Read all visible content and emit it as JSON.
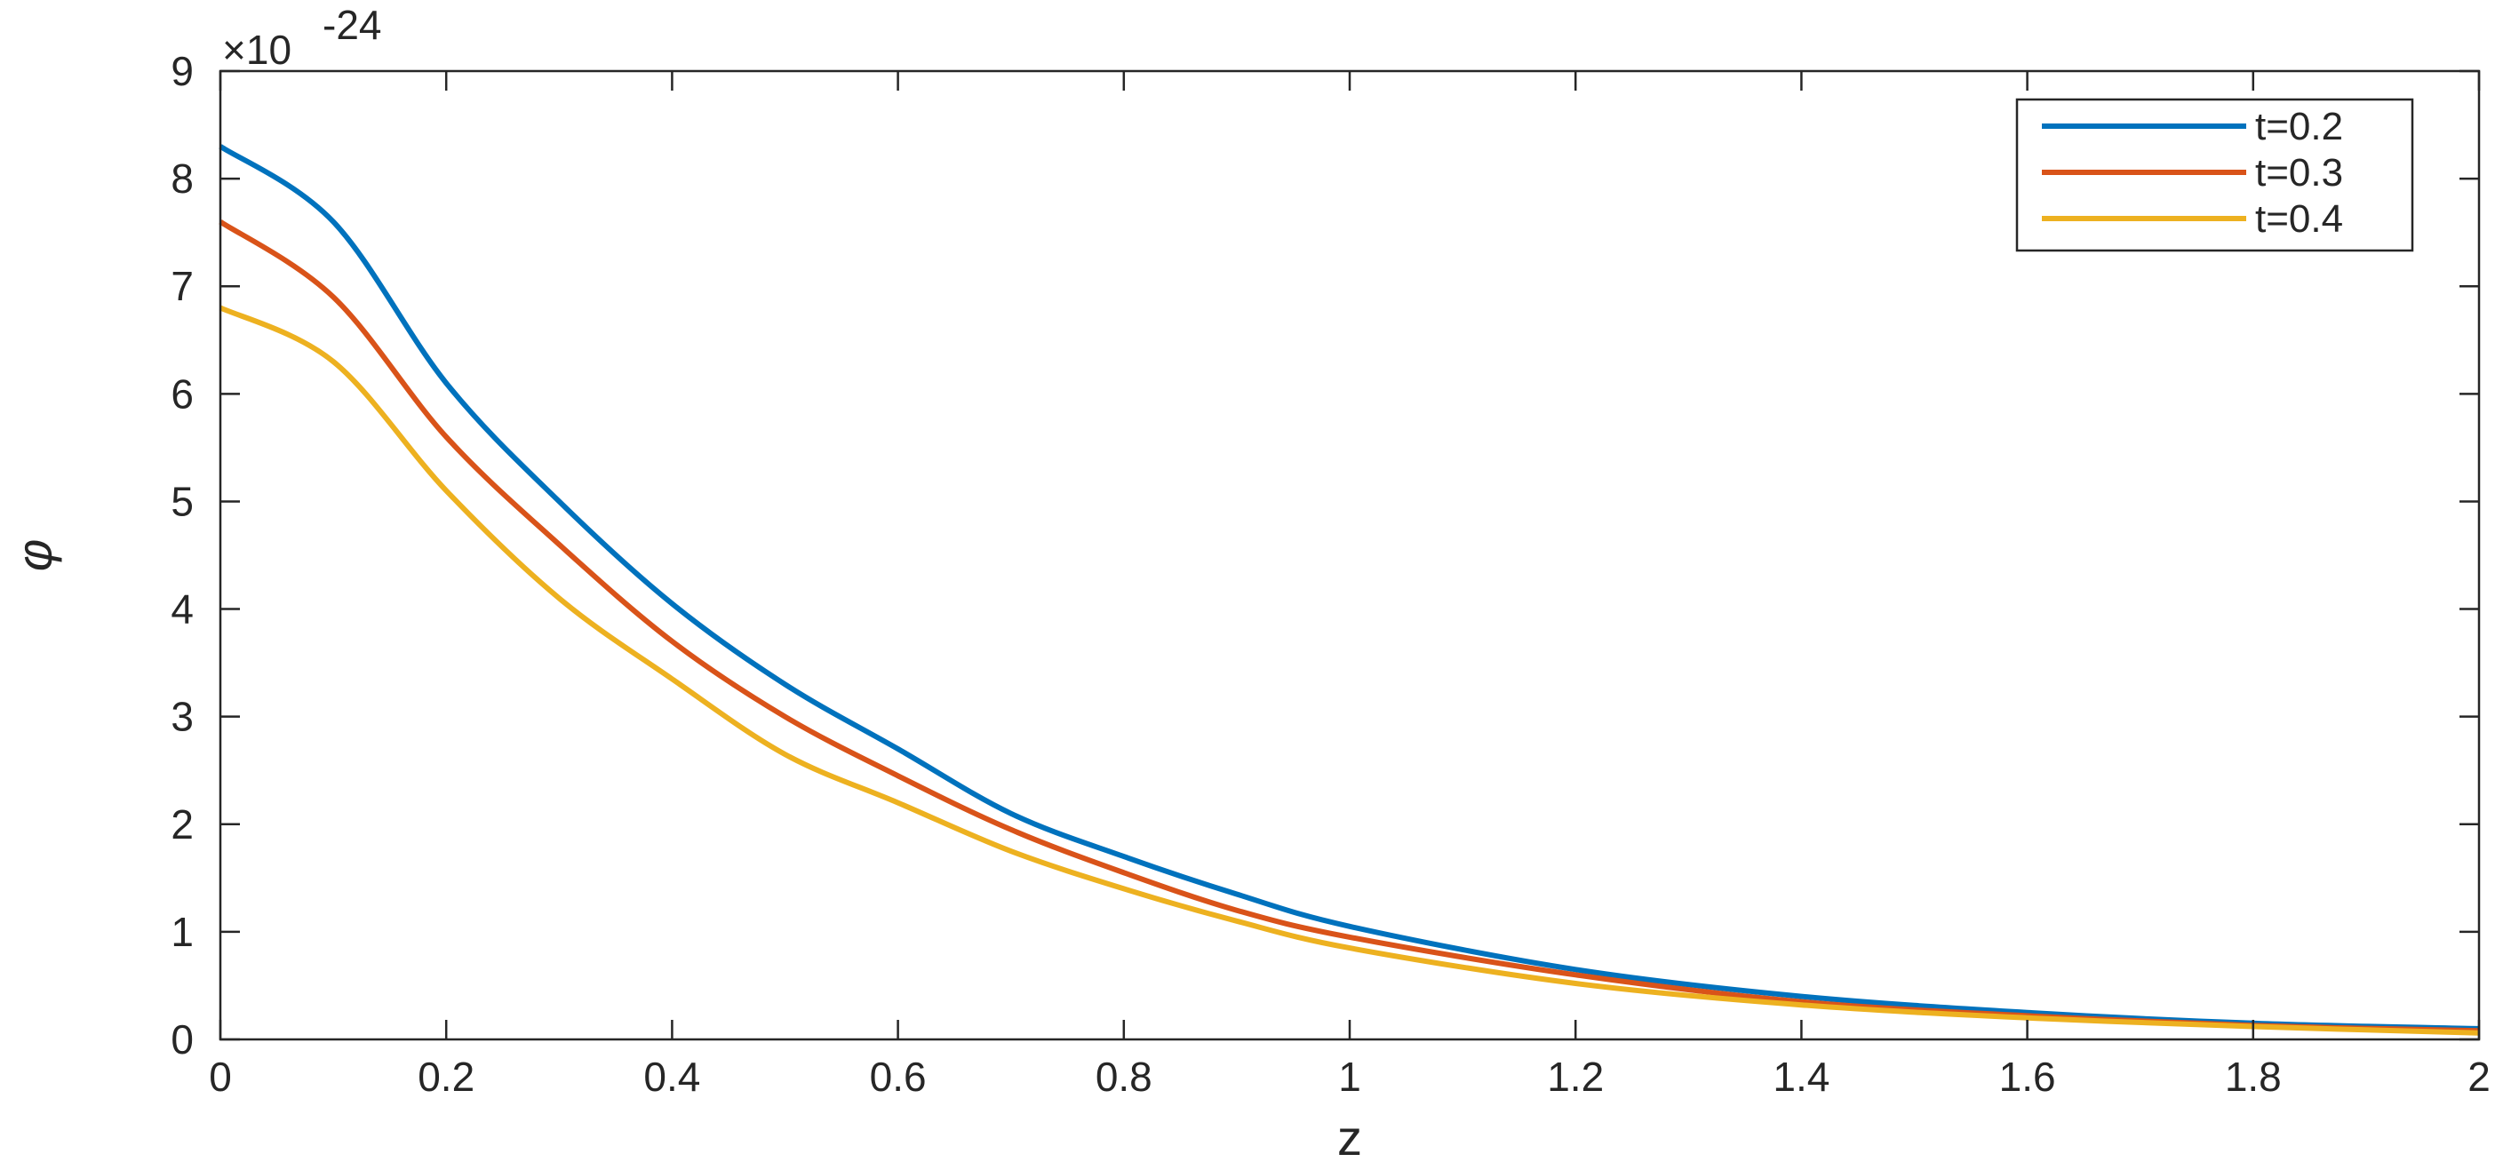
{
  "chart_data": {
    "type": "line",
    "xlabel": "z",
    "ylabel": "φ",
    "y_multiplier": {
      "base": "×10",
      "exponent": "-24"
    },
    "xlim": [
      0,
      2
    ],
    "ylim": [
      0,
      9
    ],
    "x_ticks": [
      "0",
      "0.2",
      "0.4",
      "0.6",
      "0.8",
      "1",
      "1.2",
      "1.4",
      "1.6",
      "1.8",
      "2"
    ],
    "y_ticks": [
      "0",
      "1",
      "2",
      "3",
      "4",
      "5",
      "6",
      "7",
      "8",
      "9"
    ],
    "grid": false,
    "legend_position": "top-right",
    "x": [
      0,
      0.1,
      0.2,
      0.3,
      0.4,
      0.5,
      0.6,
      0.7,
      0.8,
      0.9,
      1.0,
      1.2,
      1.4,
      1.6,
      1.8,
      2.0
    ],
    "series": [
      {
        "name": "t=0.2",
        "color": "#0072BD",
        "values": [
          8.3,
          7.6,
          6.1,
          5.0,
          4.05,
          3.3,
          2.7,
          2.1,
          1.7,
          1.35,
          1.05,
          0.65,
          0.4,
          0.25,
          0.15,
          0.1
        ]
      },
      {
        "name": "t=0.3",
        "color": "#D95319",
        "values": [
          7.6,
          6.9,
          5.6,
          4.6,
          3.7,
          3.0,
          2.45,
          1.95,
          1.55,
          1.2,
          0.95,
          0.6,
          0.35,
          0.22,
          0.13,
          0.08
        ]
      },
      {
        "name": "t=0.4",
        "color": "#EDB120",
        "values": [
          6.8,
          6.3,
          5.1,
          4.1,
          3.35,
          2.65,
          2.2,
          1.75,
          1.4,
          1.1,
          0.85,
          0.52,
          0.32,
          0.2,
          0.12,
          0.06
        ]
      }
    ]
  }
}
